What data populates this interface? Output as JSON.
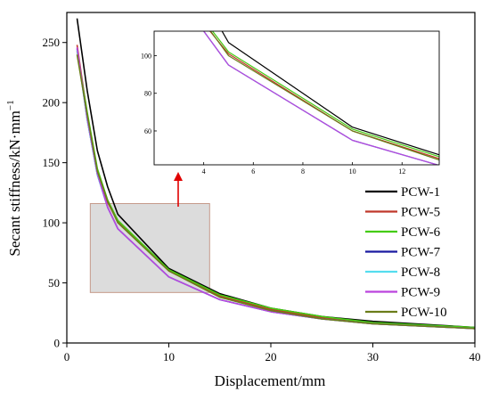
{
  "chart_data": {
    "type": "line",
    "xlabel": "Displacement/mm",
    "ylabel": "Secant stiffness/kN·mm",
    "ylabel_sup": "−1",
    "xlim": [
      0,
      40
    ],
    "ylim": [
      0,
      275
    ],
    "x_ticks": [
      0,
      10,
      20,
      30,
      40
    ],
    "y_ticks": [
      0,
      50,
      100,
      150,
      200,
      250
    ],
    "legend_position": "right",
    "series": [
      {
        "name": "PCW-1",
        "color": "#000000",
        "x": [
          1,
          2,
          3,
          4,
          5,
          10,
          15,
          20,
          25,
          30,
          40
        ],
        "y": [
          270,
          210,
          160,
          130,
          107,
          62,
          41,
          29,
          22,
          18,
          13
        ]
      },
      {
        "name": "PCW-5",
        "color": "#c0392b",
        "x": [
          1,
          2,
          3,
          4,
          5,
          10,
          15,
          20,
          25,
          30,
          40
        ],
        "y": [
          248,
          190,
          142,
          117,
          101,
          60,
          39,
          28,
          21,
          17,
          12
        ]
      },
      {
        "name": "PCW-6",
        "color": "#44cc11",
        "x": [
          1,
          2,
          3,
          4,
          5,
          10,
          15,
          20,
          25,
          30,
          40
        ],
        "y": [
          243,
          192,
          145,
          119,
          102,
          61,
          40,
          29,
          22,
          17,
          13
        ]
      },
      {
        "name": "PCW-7",
        "color": "#1a1aa0",
        "x": [
          1,
          2,
          3,
          4,
          5,
          10,
          15,
          20,
          25,
          30,
          40
        ],
        "y": [
          245,
          186,
          140,
          113,
          95,
          55,
          36,
          26,
          20,
          16,
          12
        ]
      },
      {
        "name": "PCW-8",
        "color": "#55ddee",
        "x": [
          1,
          2,
          3,
          4,
          5,
          10,
          15,
          20,
          25,
          30,
          40
        ],
        "y": [
          244,
          186,
          140,
          113,
          95,
          55,
          36,
          26,
          20,
          16,
          12
        ]
      },
      {
        "name": "PCW-9",
        "color": "#bb44dd",
        "x": [
          1,
          2,
          3,
          4,
          5,
          10,
          15,
          20,
          25,
          30,
          40
        ],
        "y": [
          246,
          187,
          141,
          113,
          95,
          55,
          36,
          26,
          20,
          16,
          12
        ]
      },
      {
        "name": "PCW-10",
        "color": "#6b7d1a",
        "x": [
          1,
          2,
          3,
          4,
          5,
          10,
          15,
          20,
          25,
          30,
          40
        ],
        "y": [
          240,
          190,
          143,
          118,
          100,
          60,
          38,
          27,
          20,
          16,
          12
        ]
      }
    ],
    "highlight_box": {
      "xlim": [
        2.3,
        14
      ],
      "ylim": [
        42,
        116
      ],
      "fill": "#dcdcdc",
      "stroke": "#c59a8a"
    },
    "arrow_color": "#e00000",
    "inset": {
      "xlim": [
        2,
        13.5
      ],
      "ylim": [
        42,
        113
      ],
      "x_ticks": [
        4,
        6,
        8,
        10,
        12
      ],
      "y_ticks": [
        60,
        80,
        100
      ]
    }
  }
}
